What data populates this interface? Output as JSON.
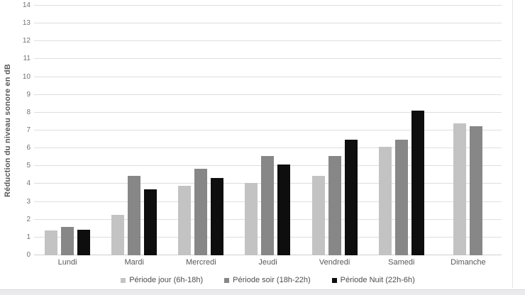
{
  "chart_data": {
    "type": "bar",
    "title": "",
    "xlabel": "",
    "ylabel": "Réduction du niveau sonore en dB",
    "ylim": [
      0,
      14
    ],
    "yticks": [
      0,
      1,
      2,
      3,
      4,
      5,
      6,
      7,
      8,
      9,
      10,
      11,
      12,
      13,
      14
    ],
    "grid": true,
    "legend_position": "bottom",
    "categories": [
      "Lundi",
      "Mardi",
      "Mercredi",
      "Jeudi",
      "Vendredi",
      "Samedi",
      "Dimanche"
    ],
    "series": [
      {
        "name": "Période jour (6h-18h)",
        "color": "#c3c3c3",
        "values": [
          1.4,
          2.25,
          3.9,
          4.05,
          4.45,
          6.1,
          7.4
        ]
      },
      {
        "name": "Période soir (18h-22h)",
        "color": "#878787",
        "values": [
          1.6,
          4.45,
          4.85,
          5.55,
          5.55,
          6.5,
          7.25
        ]
      },
      {
        "name": "Période Nuit (22h-6h)",
        "color": "#0e0e0e",
        "values": [
          1.45,
          3.7,
          4.35,
          5.1,
          6.5,
          8.1,
          null
        ]
      }
    ]
  }
}
